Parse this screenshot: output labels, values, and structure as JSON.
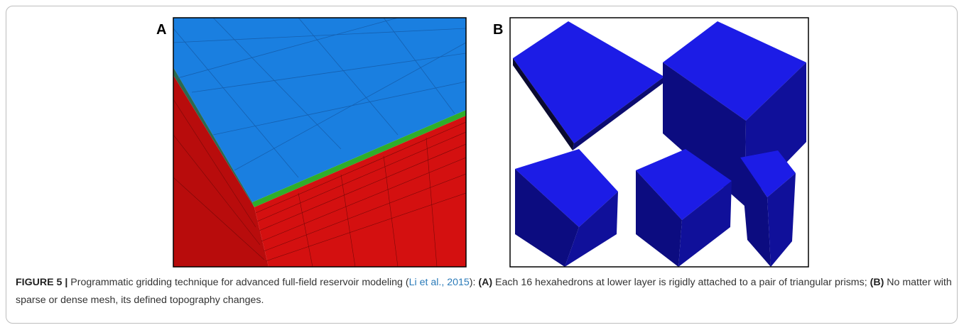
{
  "panels": [
    {
      "label": "A"
    },
    {
      "label": "B"
    }
  ],
  "caption": {
    "segments": [
      "FIGURE 5 |",
      " Programmatic gridding technique for advanced full-field reservoir modeling (",
      "Li et al., 2015",
      "): ",
      "(A)",
      " Each 16 hexahedrons at lower layer is rigidly attached to a pair of triangular prisms; ",
      "(B)",
      " No matter with sparse or dense mesh, its defined topography changes."
    ]
  }
}
